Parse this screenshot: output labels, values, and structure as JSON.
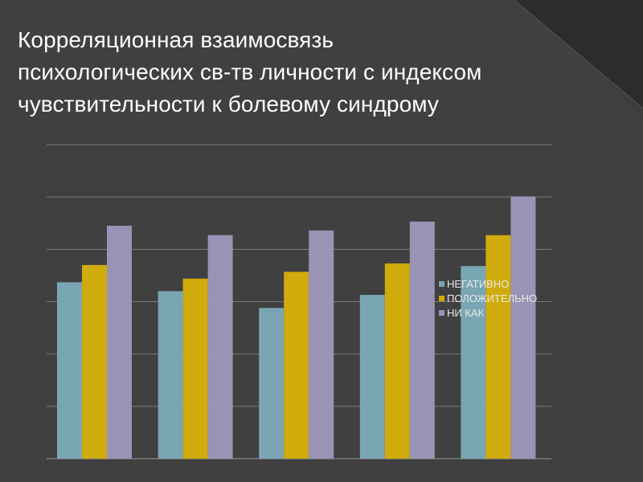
{
  "slide": {
    "title_lines": [
      "Корреляционная взаимосвязь",
      "психологических св-тв личности с индексом",
      "чувствительности к болевому синдрому"
    ]
  },
  "colors": {
    "background": "#3d3d3d",
    "series": [
      "#7aa6b4",
      "#cfab0c",
      "#9b93b5"
    ],
    "grid": "#7a7a7a"
  },
  "chart_data": {
    "type": "bar",
    "title": "",
    "xlabel": "",
    "ylabel": "",
    "ylim": [
      0,
      6
    ],
    "grid": true,
    "legend_position": "right",
    "categories": [
      "",
      "",
      "",
      "",
      ""
    ],
    "series": [
      {
        "name": "НЕГАТИВНО",
        "values": [
          3.37,
          3.2,
          2.88,
          3.13,
          3.68
        ]
      },
      {
        "name": "ПОЛОЖИТЕЛЬНО",
        "values": [
          3.7,
          3.44,
          3.57,
          3.73,
          4.27
        ]
      },
      {
        "name": "НИ КАК",
        "values": [
          4.45,
          4.27,
          4.36,
          4.53,
          5.01
        ]
      }
    ]
  }
}
